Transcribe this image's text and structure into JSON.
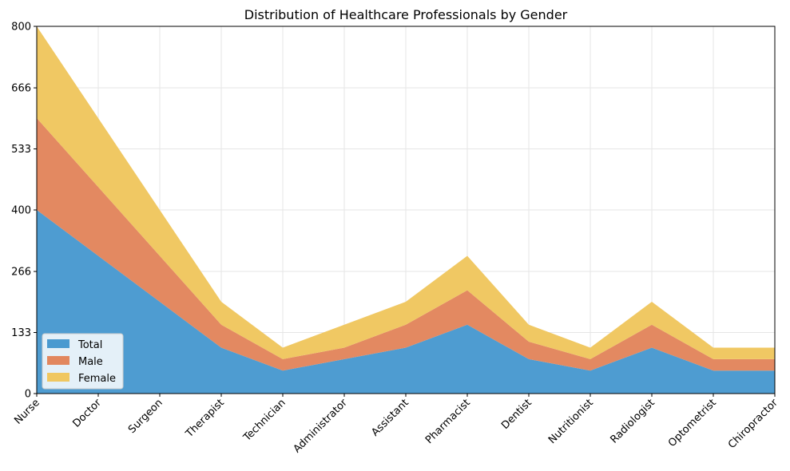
{
  "chart_data": {
    "type": "area",
    "stacked": true,
    "title": "Distribution of Healthcare Professionals by Gender",
    "xlabel": "",
    "ylabel": "",
    "categories": [
      "Nurse",
      "Doctor",
      "Surgeon",
      "Therapist",
      "Technician",
      "Administrator",
      "Assistant",
      "Pharmacist",
      "Dentist",
      "Nutritionist",
      "Radiologist",
      "Optometrist",
      "Chiropractor"
    ],
    "series": [
      {
        "name": "Total",
        "color": "#4a9ad0",
        "values": [
          400,
          300,
          200,
          100,
          50,
          75,
          100,
          150,
          75,
          50,
          100,
          50,
          50
        ]
      },
      {
        "name": "Male",
        "color": "#e2875e",
        "values": [
          200,
          150,
          100,
          50,
          25,
          25,
          50,
          75,
          38,
          25,
          50,
          25,
          25
        ]
      },
      {
        "name": "Female",
        "color": "#f0c760",
        "values": [
          200,
          150,
          100,
          50,
          25,
          50,
          50,
          75,
          37,
          25,
          50,
          25,
          25
        ]
      }
    ],
    "ylim": [
      0,
      800
    ],
    "yticks": [
      0,
      133,
      266,
      400,
      533,
      666,
      800
    ],
    "grid": true,
    "legend": "lower-left"
  }
}
